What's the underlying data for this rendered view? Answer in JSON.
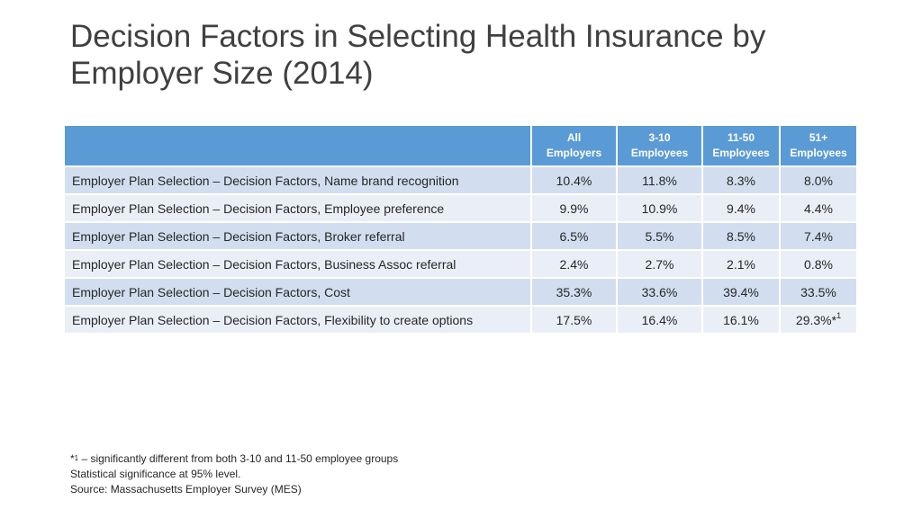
{
  "title": {
    "line1": "Decision Factors in Selecting Health Insurance by",
    "line2": "Employer Size (2014)"
  },
  "table": {
    "headers": [
      {
        "line1": "",
        "line2": ""
      },
      {
        "line1": "All",
        "line2": "Employers"
      },
      {
        "line1": "3-10",
        "line2": "Employees"
      },
      {
        "line1": "11-50",
        "line2": "Employees"
      },
      {
        "line1": "51+",
        "line2": "Employees"
      }
    ],
    "rows": [
      {
        "label": "Employer Plan Selection – Decision Factors, Name brand recognition",
        "values": [
          "10.4%",
          "11.8%",
          "8.3%",
          "8.0%"
        ]
      },
      {
        "label": "Employer Plan Selection – Decision Factors, Employee preference",
        "values": [
          "9.9%",
          "10.9%",
          "9.4%",
          "4.4%"
        ]
      },
      {
        "label": "Employer Plan Selection – Decision Factors, Broker referral",
        "values": [
          "6.5%",
          "5.5%",
          "8.5%",
          "7.4%"
        ]
      },
      {
        "label": "Employer Plan Selection – Decision Factors, Business Assoc referral",
        "values": [
          "2.4%",
          "2.7%",
          "2.1%",
          "0.8%"
        ]
      },
      {
        "label": "Employer Plan Selection – Decision Factors, Cost",
        "values": [
          "35.3%",
          "33.6%",
          "39.4%",
          "33.5%"
        ]
      },
      {
        "label": "Employer Plan Selection – Decision Factors, Flexibility to create options",
        "values": [
          "17.5%",
          "16.4%",
          "16.1%",
          "29.3%*"
        ]
      }
    ],
    "marked_cell_sup": "1"
  },
  "notes": {
    "footnote_marker": "*",
    "footnote_sup": "1",
    "footnote_text": " – significantly different from both 3-10 and 11-50 employee groups",
    "significance": "Statistical significance at 95% level.",
    "source": "Source: Massachusetts Employer Survey (MES)"
  },
  "colors": {
    "header_bg": "#5b9bd5",
    "row_odd_bg": "#d2deef",
    "row_even_bg": "#eaeff7",
    "title_color": "#404040"
  }
}
